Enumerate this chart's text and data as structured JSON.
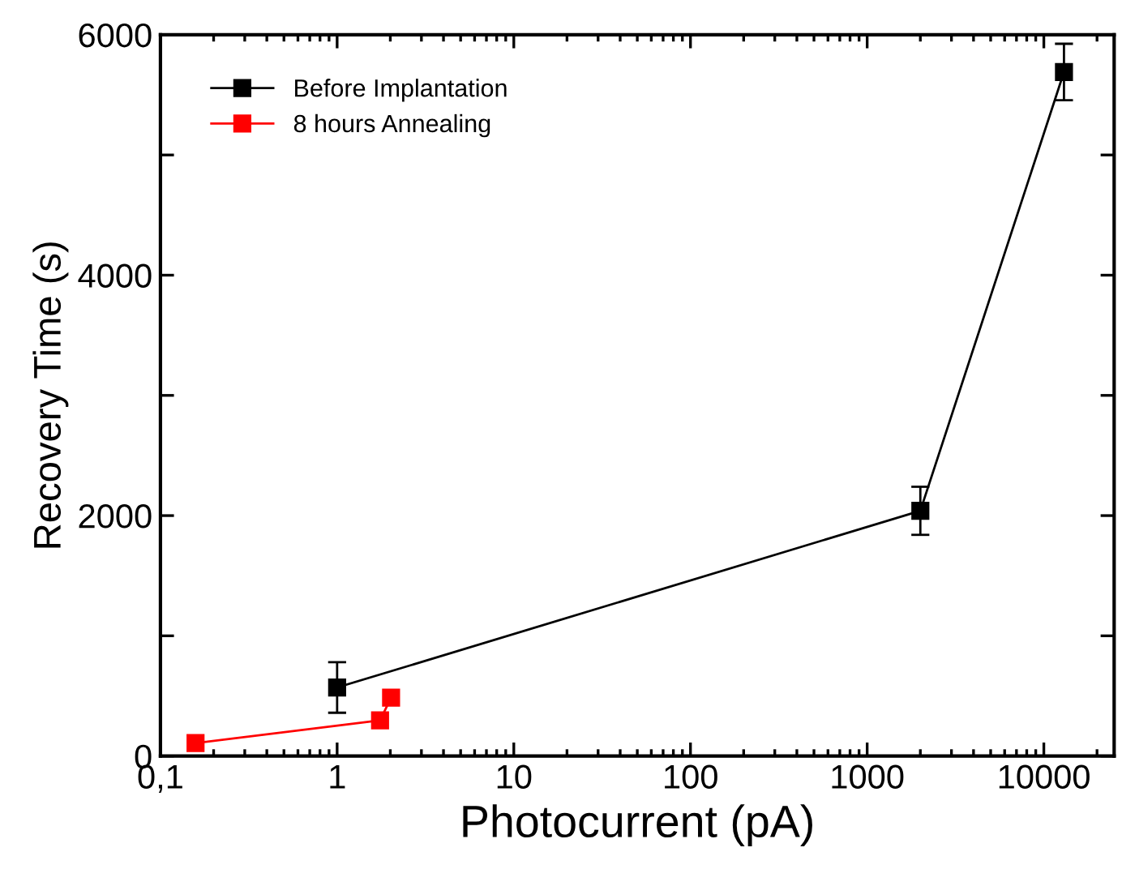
{
  "chart_data": {
    "type": "line",
    "xlabel": "Photocurrent (pA)",
    "ylabel": "Recovery Time (s)",
    "log": "x",
    "xlim": [
      0.1,
      25000
    ],
    "xticks": [
      {
        "value": 0.1,
        "label": "0,1"
      },
      1,
      10,
      100,
      1000,
      10000
    ],
    "ylim": [
      0,
      6000
    ],
    "yticks": [
      0,
      {
        "value": 1000,
        "label": null
      },
      2000,
      {
        "value": 3000,
        "label": null
      },
      4000,
      {
        "value": 5000,
        "label": null
      },
      6000
    ],
    "marker": "square",
    "line_style": "solid",
    "grid": false,
    "legend": "top left",
    "series": [
      {
        "name": "Before Implantation",
        "color": "#000000",
        "x": [
          1,
          2000,
          13000
        ],
        "values": [
          570,
          2040,
          5690
        ],
        "errors": [
          210,
          200,
          235
        ]
      },
      {
        "name": "8 hours Annealing",
        "color": "#ff0000",
        "x": [
          0.158,
          1.75,
          2.02
        ],
        "values": [
          108,
          297,
          485
        ]
      }
    ]
  }
}
